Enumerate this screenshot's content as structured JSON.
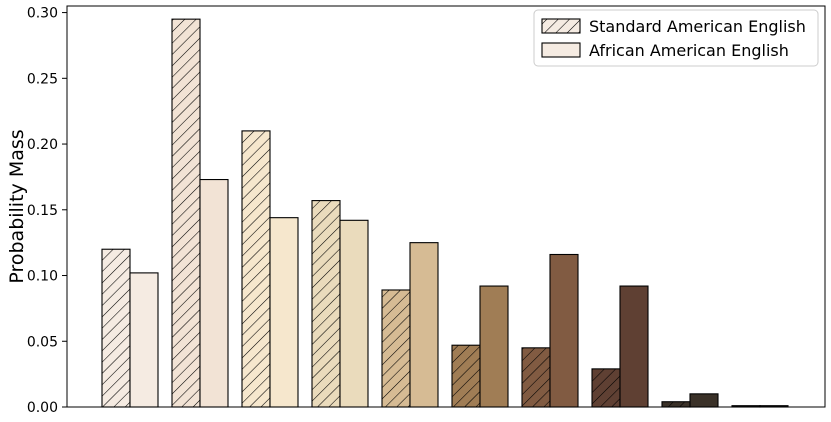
{
  "chart_data": {
    "type": "bar",
    "ylabel": "Probability Mass",
    "ylim": [
      0,
      0.305
    ],
    "yticks": [
      0.0,
      0.05,
      0.1,
      0.15,
      0.2,
      0.25,
      0.3
    ],
    "ytick_labels": [
      "0.00",
      "0.05",
      "0.10",
      "0.15",
      "0.20",
      "0.25",
      "0.30"
    ],
    "grid": false,
    "legend_placement": "top-right",
    "bin_count": 10,
    "series": [
      {
        "name": "Standard American English",
        "style": "hatched",
        "values": [
          0.12,
          0.295,
          0.21,
          0.157,
          0.089,
          0.047,
          0.045,
          0.029,
          0.004,
          0.001
        ]
      },
      {
        "name": "African American English",
        "style": "solid",
        "values": [
          0.102,
          0.173,
          0.144,
          0.142,
          0.125,
          0.092,
          0.116,
          0.092,
          0.01,
          0.001
        ]
      }
    ],
    "bin_colors": [
      "#f5ebe2",
      "#f2e3d5",
      "#f6e7cd",
      "#eadbbc",
      "#d6bb94",
      "#a07d55",
      "#815b42",
      "#5f4033",
      "#3a3128",
      "#111111"
    ],
    "legend_swatch_color": "#f5ebe2"
  }
}
